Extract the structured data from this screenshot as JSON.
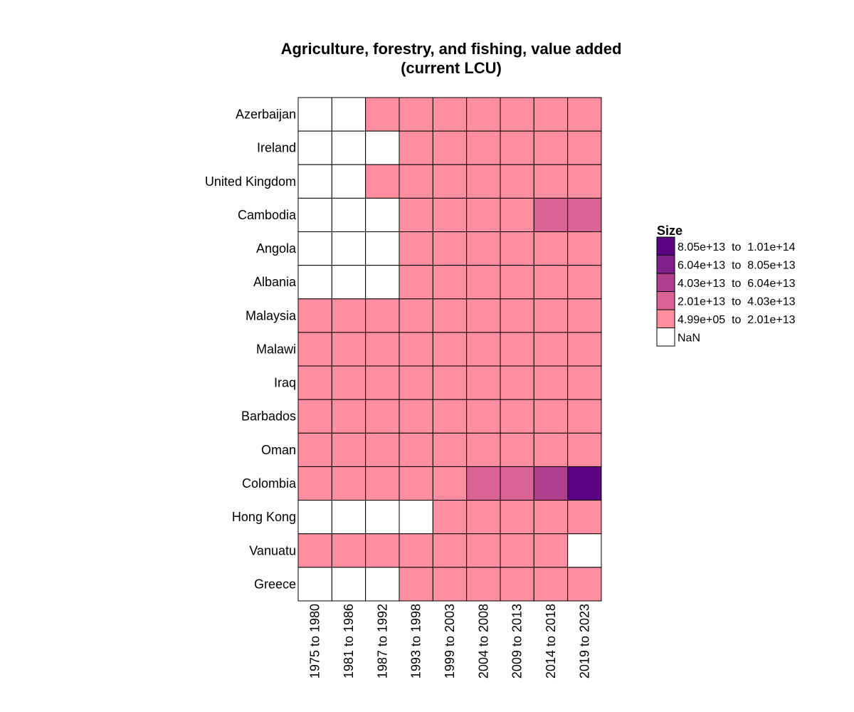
{
  "chart_data": {
    "type": "heatmap",
    "title_lines": [
      "Agriculture, forestry, and fishing, value added",
      "(current LCU)"
    ],
    "rows": [
      "Azerbaijan",
      "Ireland",
      "United Kingdom",
      "Cambodia",
      "Angola",
      "Albania",
      "Malaysia",
      "Malawi",
      "Iraq",
      "Barbados",
      "Oman",
      "Colombia",
      "Hong Kong",
      "Vanuatu",
      "Greece"
    ],
    "columns": [
      "1975 to 1980",
      "1981 to 1986",
      "1987 to 1992",
      "1993 to 1998",
      "1999 to 2003",
      "2004 to 2008",
      "2009 to 2013",
      "2014 to 2018",
      "2019 to 2023"
    ],
    "cell_bins": [
      [
        -1,
        -1,
        0,
        0,
        0,
        0,
        0,
        0,
        0
      ],
      [
        -1,
        -1,
        -1,
        0,
        0,
        0,
        0,
        0,
        0
      ],
      [
        -1,
        -1,
        0,
        0,
        0,
        0,
        0,
        0,
        0
      ],
      [
        -1,
        -1,
        -1,
        0,
        0,
        0,
        0,
        1,
        1
      ],
      [
        -1,
        -1,
        -1,
        0,
        0,
        0,
        0,
        0,
        0
      ],
      [
        -1,
        -1,
        -1,
        0,
        0,
        0,
        0,
        0,
        0
      ],
      [
        0,
        0,
        0,
        0,
        0,
        0,
        0,
        0,
        0
      ],
      [
        0,
        0,
        0,
        0,
        0,
        0,
        0,
        0,
        0
      ],
      [
        0,
        0,
        0,
        0,
        0,
        0,
        0,
        0,
        0
      ],
      [
        0,
        0,
        0,
        0,
        0,
        0,
        0,
        0,
        0
      ],
      [
        0,
        0,
        0,
        0,
        0,
        0,
        0,
        0,
        0
      ],
      [
        0,
        0,
        0,
        0,
        0,
        1,
        1,
        2,
        4
      ],
      [
        -1,
        -1,
        -1,
        -1,
        0,
        0,
        0,
        0,
        0
      ],
      [
        0,
        0,
        0,
        0,
        0,
        0,
        0,
        0,
        -1
      ],
      [
        -1,
        -1,
        -1,
        0,
        0,
        0,
        0,
        0,
        0
      ]
    ],
    "legend": {
      "title": "Size",
      "position": "right",
      "entries": [
        {
          "label": "8.05e+13  to  1.01e+14",
          "color": "#5a0080",
          "bin": 4
        },
        {
          "label": "6.04e+13  to  8.05e+13",
          "color": "#80208a",
          "bin": 3
        },
        {
          "label": "4.03e+13  to  6.04e+13",
          "color": "#b0408e",
          "bin": 2
        },
        {
          "label": "2.01e+13  to  4.03e+13",
          "color": "#d96494",
          "bin": 1
        },
        {
          "label": "4.99e+05  to  2.01e+13",
          "color": "#ff8fa0",
          "bin": 0
        },
        {
          "label": "NaN",
          "color": "#ffffff",
          "bin": -1
        }
      ]
    },
    "nan_color": "#ffffff"
  }
}
